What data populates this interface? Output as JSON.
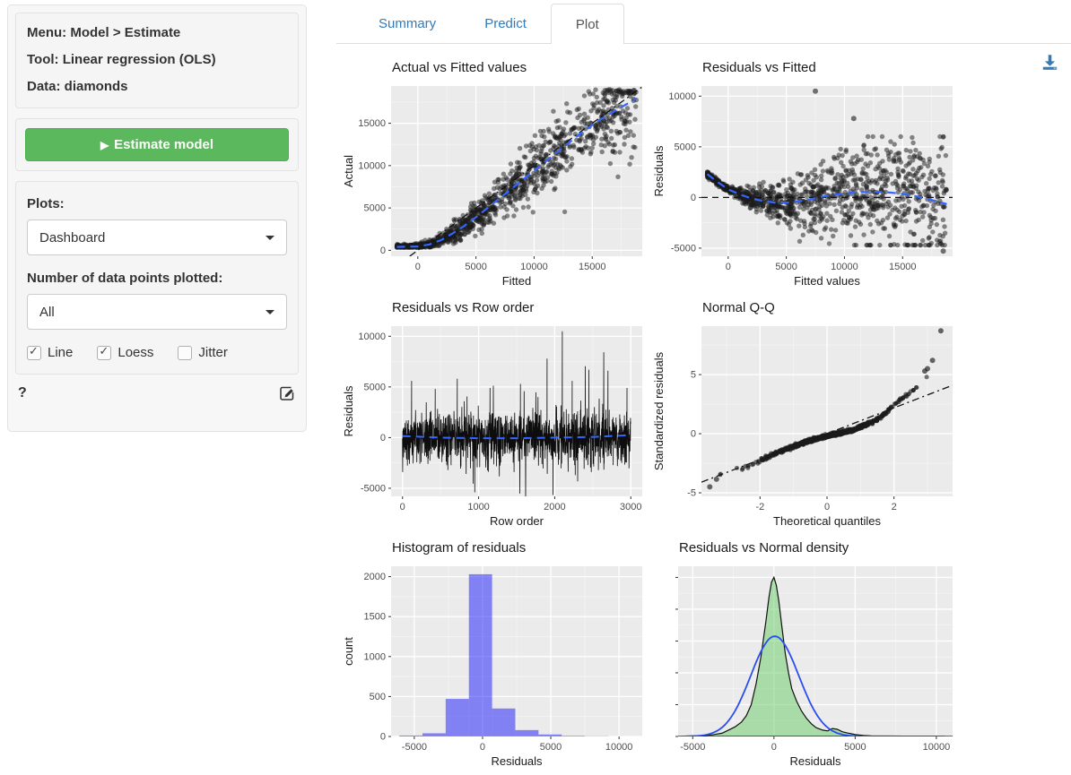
{
  "sidebar": {
    "info_lines": [
      "Menu: Model > Estimate",
      "Tool: Linear regression (OLS)",
      "Data: diamonds"
    ],
    "estimate_button_label": "Estimate model",
    "play_icon": "▶",
    "plots_label": "Plots:",
    "plots_value": "Dashboard",
    "n_points_label": "Number of data points plotted:",
    "n_points_value": "All",
    "checkboxes": [
      {
        "label": "Line",
        "checked": true
      },
      {
        "label": "Loess",
        "checked": true
      },
      {
        "label": "Jitter",
        "checked": false
      }
    ],
    "help_label": "?"
  },
  "tabs": {
    "items": [
      {
        "label": "Summary",
        "active": false
      },
      {
        "label": "Predict",
        "active": false
      },
      {
        "label": "Plot",
        "active": true
      }
    ]
  },
  "colors": {
    "panel": "#EBEBEB",
    "grid": "#FFFFFF",
    "point": "#1a1a1a",
    "smooth_blue": "#3366FF",
    "hist_fill": "#0000FF",
    "density_fill": "#66CC66",
    "normal_curve": "#2A4DF0",
    "button_green": "#5cb85c",
    "link_blue": "#337ab7",
    "tick_label": "#4d4d4d"
  },
  "chart_data": [
    {
      "id": "actual_fitted",
      "type": "scatter",
      "title": "Actual vs Fitted values",
      "xlabel": "Fitted",
      "ylabel": "Actual",
      "xlim": [
        -2300,
        19300
      ],
      "ylim": [
        -700,
        19400
      ],
      "xticks": [
        0,
        5000,
        10000,
        15000
      ],
      "yticks": [
        0,
        5000,
        10000,
        15000
      ],
      "abline": {
        "style": "dashdot",
        "from": [
          -700,
          -700
        ],
        "to": [
          19400,
          19400
        ]
      },
      "loess": [
        [
          -1800,
          400
        ],
        [
          0,
          450
        ],
        [
          1000,
          700
        ],
        [
          2000,
          1200
        ],
        [
          3000,
          2000
        ],
        [
          4000,
          2900
        ],
        [
          5000,
          3900
        ],
        [
          6000,
          5000
        ],
        [
          7000,
          6100
        ],
        [
          8000,
          7200
        ],
        [
          9000,
          8300
        ],
        [
          10000,
          9400
        ],
        [
          11000,
          10500
        ],
        [
          12000,
          11600
        ],
        [
          13000,
          12700
        ],
        [
          14000,
          13800
        ],
        [
          15000,
          14800
        ],
        [
          16000,
          15700
        ],
        [
          17000,
          16500
        ],
        [
          18000,
          17300
        ],
        [
          18800,
          17900
        ]
      ],
      "sim": {
        "n": 1150,
        "seed": 11,
        "x_min": -1800,
        "x_max": 18800,
        "x_pow": 1.25,
        "noise_base": 130,
        "noise_slope": 0.16,
        "y_floor": 330
      }
    },
    {
      "id": "resid_fitted",
      "type": "scatter",
      "title": "Residuals vs Fitted",
      "xlabel": "Fitted values",
      "ylabel": "Residuals",
      "xlim": [
        -2300,
        19300
      ],
      "ylim": [
        -5800,
        11000
      ],
      "xticks": [
        0,
        5000,
        10000,
        15000
      ],
      "yticks": [
        -5000,
        0,
        5000,
        10000
      ],
      "hline": {
        "y": 0,
        "style": "dash"
      },
      "loess": [
        [
          -1800,
          2300
        ],
        [
          -1000,
          1600
        ],
        [
          0,
          800
        ],
        [
          1000,
          300
        ],
        [
          2000,
          -100
        ],
        [
          3000,
          -350
        ],
        [
          4000,
          -500
        ],
        [
          5000,
          -520
        ],
        [
          6000,
          -400
        ],
        [
          7000,
          -200
        ],
        [
          8000,
          50
        ],
        [
          9000,
          250
        ],
        [
          10000,
          400
        ],
        [
          11000,
          500
        ],
        [
          12000,
          550
        ],
        [
          13000,
          560
        ],
        [
          14000,
          480
        ],
        [
          15000,
          350
        ],
        [
          16000,
          150
        ],
        [
          17000,
          -100
        ],
        [
          18000,
          -400
        ],
        [
          18800,
          -650
        ]
      ],
      "outliers": [
        [
          7500,
          10500
        ],
        [
          10800,
          7800
        ],
        [
          18500,
          -5300
        ]
      ],
      "sim": {
        "n": 1150,
        "seed": 22,
        "x_min": -1800,
        "x_max": 18800,
        "x_pow": 1.25,
        "noise_base": 140,
        "noise_slope": 0.2
      }
    },
    {
      "id": "resid_row",
      "type": "line",
      "title": "Residuals vs Row order",
      "xlabel": "Row order",
      "ylabel": "Residuals",
      "xlim": [
        -150,
        3150
      ],
      "ylim": [
        -5800,
        11000
      ],
      "xticks": [
        0,
        1000,
        2000,
        3000
      ],
      "yticks": [
        -5000,
        0,
        5000,
        10000
      ],
      "loess": [
        [
          0,
          150
        ],
        [
          500,
          0
        ],
        [
          1000,
          -60
        ],
        [
          1500,
          -60
        ],
        [
          2000,
          0
        ],
        [
          2500,
          60
        ],
        [
          3000,
          250
        ]
      ],
      "spikes": [
        [
          120,
          5600
        ],
        [
          430,
          4800
        ],
        [
          720,
          5800
        ],
        [
          950,
          -5400
        ],
        [
          1150,
          4900
        ],
        [
          1550,
          5300
        ],
        [
          1900,
          7800
        ],
        [
          2100,
          10500
        ],
        [
          2230,
          5600
        ],
        [
          2450,
          6700
        ],
        [
          2700,
          6600
        ],
        [
          2950,
          4900
        ]
      ],
      "sim": {
        "n": 1500,
        "seed": 33,
        "amp": 1250,
        "tail_p": 0.05,
        "tail_mult": 2.5
      }
    },
    {
      "id": "qq",
      "type": "scatter",
      "title": "Normal Q-Q",
      "xlabel": "Theoretical quantiles",
      "ylabel": "Standardized residuals",
      "xlim": [
        -3.75,
        3.75
      ],
      "ylim": [
        -5.3,
        9.1
      ],
      "xticks": [
        -2,
        0,
        2
      ],
      "yticks": [
        -5,
        0,
        5
      ],
      "abline": {
        "style": "dashdot",
        "from": [
          -3.75,
          -4.1
        ],
        "to": [
          3.75,
          4.1
        ]
      },
      "curve": [
        [
          -3.6,
          -3.6
        ],
        [
          -3.2,
          -3.4
        ],
        [
          -2.8,
          -3.15
        ],
        [
          -2.4,
          -2.8
        ],
        [
          -2.0,
          -2.3
        ],
        [
          -1.6,
          -1.75
        ],
        [
          -1.2,
          -1.3
        ],
        [
          -0.8,
          -0.85
        ],
        [
          -0.4,
          -0.5
        ],
        [
          0,
          -0.2
        ],
        [
          0.4,
          0.05
        ],
        [
          0.8,
          0.35
        ],
        [
          1.2,
          0.8
        ],
        [
          1.5,
          1.2
        ],
        [
          1.8,
          1.9
        ],
        [
          2.1,
          2.7
        ],
        [
          2.4,
          3.3
        ],
        [
          2.7,
          4.0
        ],
        [
          2.9,
          4.5
        ],
        [
          3.05,
          4.9
        ],
        [
          3.15,
          5.2
        ]
      ],
      "outliers": [
        [
          3.4,
          8.7
        ],
        [
          3.15,
          6.2
        ],
        [
          3.0,
          5.5
        ],
        [
          2.92,
          5.3
        ],
        [
          -3.5,
          -4.5
        ],
        [
          -3.3,
          -3.85
        ]
      ],
      "sim": {
        "n": 850,
        "seed": 44,
        "jitter": 0.07,
        "q_clamp": 3.25
      }
    },
    {
      "id": "hist",
      "type": "bar",
      "title": "Histogram of residuals",
      "xlabel": "Residuals",
      "ylabel": "count",
      "xlim": [
        -6700,
        11700
      ],
      "ylim": [
        0,
        2130
      ],
      "xticks": [
        -5000,
        0,
        5000,
        10000
      ],
      "yticks": [
        0,
        500,
        1000,
        1500,
        2000
      ],
      "bin_edges": [
        -6100,
        -4400,
        -2700,
        -1000,
        700,
        2400,
        4100,
        5800,
        7500,
        9200
      ],
      "counts": [
        12,
        40,
        470,
        2030,
        350,
        80,
        25,
        8,
        3
      ]
    },
    {
      "id": "density",
      "type": "area",
      "title": "Residuals vs Normal density",
      "xlabel": "Residuals",
      "ylabel": "",
      "xlim": [
        -5900,
        11000
      ],
      "ylim": [
        0,
        1.07
      ],
      "xticks": [
        -5000,
        0,
        5000,
        10000
      ],
      "yticks": [
        0,
        0.2,
        0.4,
        0.6,
        0.8,
        1.0
      ],
      "show_ylab": false,
      "density": [
        [
          -5500,
          0.002
        ],
        [
          -4500,
          0.005
        ],
        [
          -3800,
          0.01
        ],
        [
          -3200,
          0.02
        ],
        [
          -2800,
          0.04
        ],
        [
          -2400,
          0.06
        ],
        [
          -2000,
          0.09
        ],
        [
          -1700,
          0.13
        ],
        [
          -1400,
          0.2
        ],
        [
          -1100,
          0.33
        ],
        [
          -800,
          0.5
        ],
        [
          -500,
          0.72
        ],
        [
          -300,
          0.88
        ],
        [
          -150,
          0.97
        ],
        [
          0,
          1.0
        ],
        [
          150,
          0.95
        ],
        [
          300,
          0.85
        ],
        [
          500,
          0.68
        ],
        [
          700,
          0.52
        ],
        [
          900,
          0.4
        ],
        [
          1100,
          0.3
        ],
        [
          1400,
          0.22
        ],
        [
          1700,
          0.16
        ],
        [
          2000,
          0.115
        ],
        [
          2300,
          0.08
        ],
        [
          2600,
          0.055
        ],
        [
          3000,
          0.04
        ],
        [
          3300,
          0.035
        ],
        [
          3600,
          0.05
        ],
        [
          3900,
          0.045
        ],
        [
          4200,
          0.03
        ],
        [
          4600,
          0.02
        ],
        [
          5000,
          0.012
        ],
        [
          5500,
          0.007
        ],
        [
          6000,
          0.004
        ],
        [
          7000,
          0.003
        ],
        [
          8000,
          0.002
        ],
        [
          9000,
          0.002
        ],
        [
          10500,
          0.002
        ]
      ],
      "normal": {
        "mean": 50,
        "sd": 1480,
        "peak": 0.63
      }
    }
  ]
}
